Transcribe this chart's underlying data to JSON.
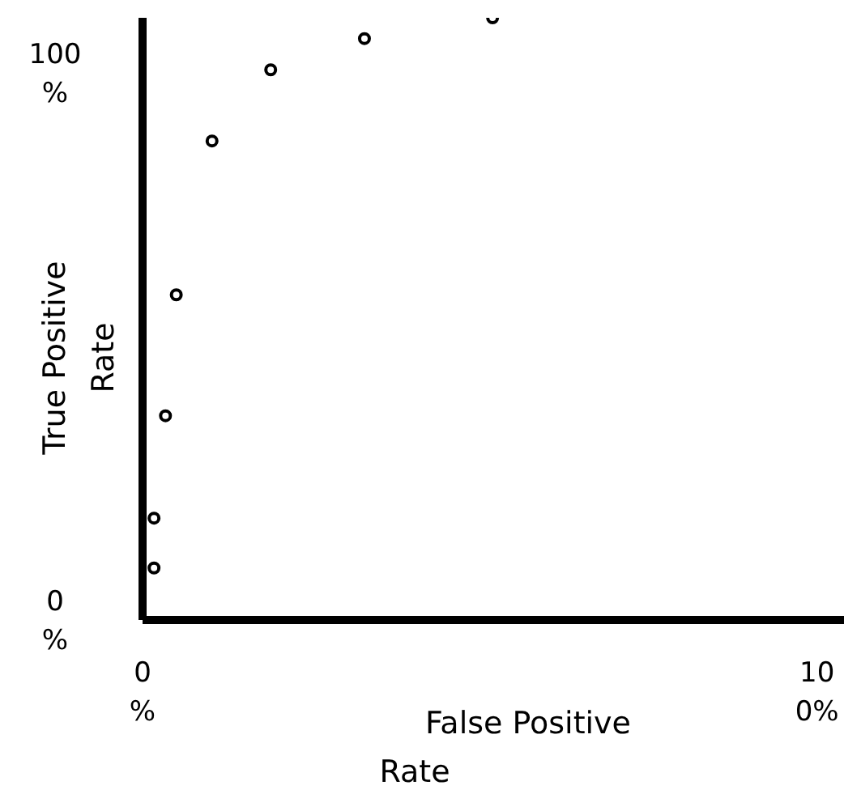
{
  "chart_data": {
    "type": "scatter",
    "xlabel": "False Positive Rate",
    "ylabel": "True Positive Rate",
    "x": [
      1.7,
      1.7,
      3.4,
      5,
      10.3,
      19,
      32.9,
      51.9
    ],
    "values": [
      9.5,
      18.6,
      37.3,
      59.4,
      87.5,
      100.5,
      106.2,
      110
    ],
    "color": "#000000",
    "marker": "circle",
    "grid": false,
    "legend": false,
    "xlim": [
      0,
      104
    ],
    "ylim": [
      0,
      110
    ],
    "xticks": [
      {
        "value": 0,
        "label": "0 %"
      },
      {
        "value": 100,
        "label": "100%"
      }
    ],
    "yticks": [
      {
        "value": 0,
        "label": "0 %"
      },
      {
        "value": 100,
        "label": "100 %"
      }
    ]
  }
}
